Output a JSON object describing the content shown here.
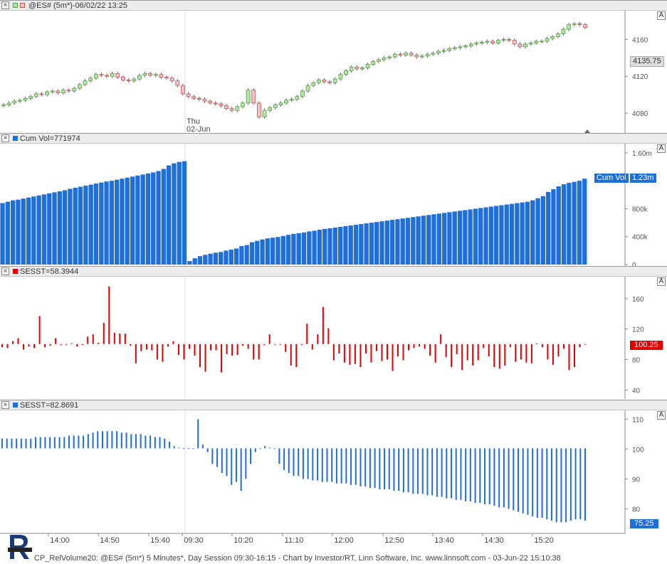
{
  "price_pane": {
    "title": "@ES# (5m*)-06/02/22 13:25",
    "y_ticks": [
      "4160",
      "4120",
      "4080"
    ],
    "last_price": "4135.75",
    "session_marker_day": "Thu",
    "session_marker_date": "02-Jun",
    "autoscale_label": "A"
  },
  "cumvol_pane": {
    "title": "Cum Vol=771974",
    "y_ticks": [
      "1.60m",
      "800k",
      "400k",
      "0"
    ],
    "badge_name": "Cum Vol",
    "badge_value": "1.23m",
    "autoscale_label": "A",
    "color": "#1f6fd6"
  },
  "sesst1_pane": {
    "title": "SESST=58.3944",
    "y_ticks": [
      "160",
      "120",
      "80",
      "40"
    ],
    "badge_value": "100.25",
    "autoscale_label": "A",
    "color": "#e00000"
  },
  "sesst2_pane": {
    "title": "SESST=82.8691",
    "y_ticks": [
      "110",
      "100",
      "90",
      "80"
    ],
    "badge_value": "75.25",
    "autoscale_label": "A",
    "color": "#1f6fd6"
  },
  "time_axis": [
    "14:00",
    "14:50",
    "15:40",
    "09:30",
    "10:20",
    "11:10",
    "12:00",
    "12:50",
    "13:40",
    "14:30",
    "15:20"
  ],
  "footer_text": "CP_RelVolume20: @ES# (5m*) 5 Minutes*, Day Session 09:30-16:15 - Chart by Investor/RT, Linn Software, Inc. www.linnsoft.com - 03-Jun-22 15:10:38",
  "chart_data": [
    {
      "type": "candlestick",
      "title": "@ES# (5m*)-06/02/22 13:25",
      "ylim": [
        4060,
        4185
      ],
      "close": [
        4089,
        4091,
        4093,
        4094,
        4096,
        4098,
        4101,
        4100,
        4103,
        4104,
        4102,
        4105,
        4104,
        4107,
        4111,
        4115,
        4118,
        4122,
        4121,
        4120,
        4123,
        4119,
        4116,
        4115,
        4117,
        4121,
        4123,
        4121,
        4122,
        4119,
        4118,
        4115,
        4110,
        4101,
        4098,
        4096,
        4095,
        4093,
        4091,
        4090,
        4088,
        4085,
        4083,
        4087,
        4091,
        4105,
        4091,
        4076,
        4083,
        4086,
        4089,
        4091,
        4094,
        4095,
        4098,
        4104,
        4110,
        4113,
        4116,
        4114,
        4113,
        4117,
        4122,
        4126,
        4130,
        4128,
        4129,
        4133,
        4136,
        4138,
        4140,
        4141,
        4144,
        4143,
        4145,
        4143,
        4141,
        4142,
        4144,
        4145,
        4147,
        4148,
        4150,
        4151,
        4152,
        4153,
        4155,
        4156,
        4157,
        4158,
        4156,
        4159,
        4160,
        4159,
        4155,
        4152,
        4155,
        4156,
        4158,
        4158,
        4161,
        4163,
        4166,
        4171,
        4176,
        4177,
        4176,
        4173
      ]
    },
    {
      "type": "bar",
      "title": "Cum Vol=771974",
      "ylim": [
        0,
        1650000
      ],
      "values": [
        880000,
        900000,
        920000,
        930000,
        945000,
        960000,
        975000,
        990000,
        1005000,
        1020000,
        1035000,
        1050000,
        1065000,
        1085000,
        1100000,
        1115000,
        1130000,
        1145000,
        1160000,
        1175000,
        1190000,
        1200000,
        1215000,
        1230000,
        1245000,
        1260000,
        1275000,
        1290000,
        1305000,
        1320000,
        1340000,
        1370000,
        1420000,
        1450000,
        1470000,
        1480000,
        50000,
        90000,
        120000,
        140000,
        155000,
        170000,
        180000,
        200000,
        215000,
        230000,
        265000,
        280000,
        320000,
        340000,
        360000,
        375000,
        385000,
        395000,
        410000,
        425000,
        440000,
        450000,
        460000,
        475000,
        485000,
        500000,
        510000,
        520000,
        530000,
        540000,
        550000,
        560000,
        570000,
        580000,
        590000,
        600000,
        610000,
        620000,
        630000,
        640000,
        650000,
        660000,
        670000,
        680000,
        690000,
        700000,
        710000,
        720000,
        730000,
        740000,
        750000,
        760000,
        770000,
        780000,
        790000,
        800000,
        810000,
        820000,
        830000,
        840000,
        850000,
        860000,
        870000,
        880000,
        890000,
        900000,
        920000,
        950000,
        980000,
        1040000,
        1080000,
        1120000,
        1150000,
        1170000,
        1185000,
        1200000,
        1230000
      ]
    },
    {
      "type": "bar",
      "title": "SESST=58.3944",
      "ylim": [
        30,
        185
      ],
      "baseline": 100.25,
      "values": [
        96,
        95,
        104,
        108,
        93,
        97,
        95,
        137,
        96,
        98,
        108,
        99,
        100,
        101,
        97,
        99,
        110,
        113,
        102,
        128,
        176,
        115,
        114,
        114,
        98,
        75,
        91,
        93,
        92,
        80,
        77,
        97,
        104,
        86,
        80,
        94,
        85,
        70,
        64,
        92,
        92,
        63,
        87,
        85,
        86,
        98,
        94,
        80,
        80,
        99,
        113,
        100,
        100,
        90,
        72,
        70,
        99,
        127,
        93,
        113,
        149,
        121,
        79,
        88,
        76,
        73,
        74,
        70,
        88,
        76,
        91,
        78,
        80,
        65,
        84,
        79,
        92,
        95,
        97,
        94,
        85,
        76,
        113,
        83,
        70,
        87,
        66,
        79,
        72,
        79,
        95,
        84,
        70,
        68,
        72,
        96,
        77,
        80,
        76,
        75,
        101,
        96,
        80,
        73,
        84,
        94,
        66,
        70,
        96,
        100
      ]
    },
    {
      "type": "bar",
      "title": "SESST=82.8691",
      "ylim": [
        72,
        112
      ],
      "baseline": 100.25,
      "values": [
        103.5,
        103.5,
        103.5,
        103.5,
        103.5,
        103.5,
        103.5,
        104,
        104,
        104,
        104,
        104,
        104,
        104,
        104.5,
        104.5,
        104.5,
        104.5,
        105,
        105.5,
        106,
        106,
        106,
        106,
        106,
        105.5,
        105.5,
        105,
        105,
        105,
        104.5,
        104.5,
        104,
        104,
        103.5,
        102.5,
        101,
        100.5,
        100.3,
        100.3,
        100.2,
        110,
        101.5,
        99,
        95,
        94,
        92,
        91,
        88,
        89,
        86,
        90,
        95,
        99,
        100,
        101,
        100.5,
        100,
        95,
        93,
        92,
        91,
        91,
        90,
        90,
        89.5,
        89.5,
        89,
        89,
        89,
        88.5,
        88.5,
        88.5,
        88,
        88,
        87.5,
        87.5,
        87,
        87,
        86.5,
        86.5,
        86.5,
        86,
        86,
        85.5,
        85.5,
        85,
        85,
        85,
        84.5,
        84.5,
        84,
        84,
        83.5,
        83.5,
        83,
        83,
        82.5,
        82.5,
        82,
        82,
        81.5,
        81.5,
        81,
        80.5,
        80.5,
        80,
        79.5,
        79,
        78.5,
        78,
        77.5,
        77,
        77,
        76.5,
        76,
        75.5,
        75.5,
        75.5,
        76,
        76.5,
        76.5,
        76
      ]
    }
  ]
}
